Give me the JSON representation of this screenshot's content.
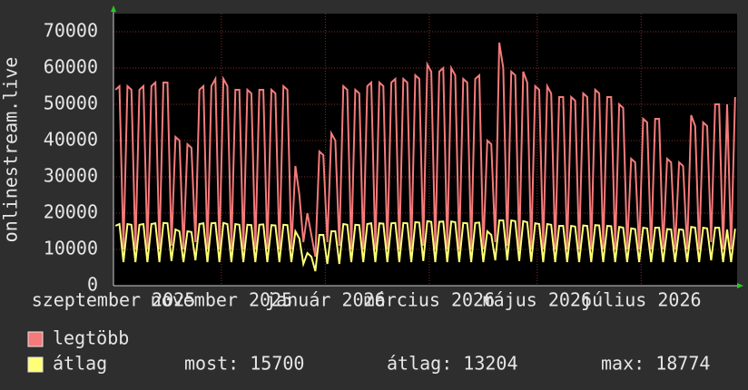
{
  "chart_data": {
    "type": "line",
    "ylabel": "onlinestream.live",
    "xlim": [
      0,
      156
    ],
    "ylim": [
      0,
      75000
    ],
    "yticks": [
      0,
      10000,
      20000,
      30000,
      40000,
      50000,
      60000,
      70000
    ],
    "xticks": [
      {
        "value": 0,
        "label": "szeptember 2025"
      },
      {
        "value": 27,
        "label": "november 2025"
      },
      {
        "value": 53,
        "label": "január 2026"
      },
      {
        "value": 79,
        "label": "március 2026"
      },
      {
        "value": 106,
        "label": "május 2026"
      },
      {
        "value": 132,
        "label": "július 2026"
      }
    ],
    "grid": true,
    "series": [
      {
        "name": "legtöbb",
        "color": "#f57a7a",
        "values": [
          54000,
          55000,
          10000,
          55000,
          54000,
          10000,
          54000,
          55000,
          10000,
          55000,
          56000,
          10000,
          56000,
          56000,
          11000,
          41000,
          40000,
          10000,
          39000,
          38000,
          12000,
          54000,
          55000,
          10000,
          55000,
          57000,
          10000,
          57000,
          55000,
          10000,
          54000,
          54000,
          10000,
          54000,
          53000,
          10000,
          54000,
          54000,
          10000,
          54000,
          53000,
          10000,
          55000,
          54000,
          10000,
          33000,
          25000,
          12000,
          20000,
          14000,
          8000,
          37000,
          36000,
          12000,
          42000,
          40000,
          11000,
          55000,
          54000,
          10000,
          54000,
          53000,
          10000,
          55000,
          56000,
          10000,
          56000,
          55000,
          10000,
          56000,
          57000,
          10000,
          57000,
          56000,
          10000,
          58000,
          57000,
          11000,
          61000,
          59000,
          10000,
          59000,
          60000,
          10000,
          60000,
          58000,
          10000,
          57000,
          56000,
          10000,
          57000,
          58000,
          10000,
          40000,
          39000,
          12000,
          67000,
          60000,
          11000,
          59000,
          58000,
          10000,
          59000,
          56000,
          10000,
          55000,
          54000,
          10000,
          55000,
          53000,
          10000,
          52000,
          52000,
          10000,
          52000,
          51000,
          10000,
          53000,
          52000,
          10000,
          54000,
          53000,
          10000,
          52000,
          52000,
          10000,
          50000,
          49000,
          10000,
          35000,
          34000,
          10000,
          46000,
          45000,
          10000,
          46000,
          46000,
          10000,
          35000,
          34000,
          10000,
          34000,
          33000,
          10000,
          47000,
          44000,
          10000,
          45000,
          44000,
          12000,
          50000,
          50000,
          10000,
          50000,
          10000,
          52000
        ]
      },
      {
        "name": "átlag",
        "color": "#ffff77",
        "values": [
          16500,
          17000,
          6500,
          17000,
          16800,
          6500,
          16800,
          17000,
          6500,
          17000,
          17200,
          6500,
          17300,
          17200,
          6800,
          15500,
          15000,
          6500,
          15000,
          14800,
          7000,
          17000,
          17200,
          6500,
          17200,
          17300,
          6500,
          17300,
          17000,
          6500,
          17000,
          16800,
          6500,
          16800,
          16700,
          6500,
          16800,
          16900,
          6500,
          16700,
          16600,
          6500,
          16800,
          16700,
          6500,
          15000,
          13000,
          6000,
          9000,
          8000,
          4000,
          14000,
          14000,
          6000,
          15000,
          15000,
          6000,
          17000,
          16800,
          6500,
          16800,
          16700,
          6500,
          17000,
          17200,
          6500,
          17200,
          17100,
          6500,
          17200,
          17300,
          6500,
          17300,
          17200,
          6500,
          17500,
          17400,
          6800,
          17800,
          17600,
          6500,
          17600,
          17700,
          6500,
          17700,
          17500,
          6500,
          17300,
          17200,
          6500,
          17300,
          17400,
          6500,
          15000,
          14000,
          7000,
          18000,
          18000,
          7000,
          18000,
          17800,
          6800,
          17800,
          17500,
          6600,
          17200,
          17000,
          6500,
          17000,
          16800,
          6500,
          16500,
          16500,
          6500,
          16500,
          16300,
          6500,
          16600,
          16500,
          6500,
          16700,
          16600,
          6500,
          16500,
          16400,
          6500,
          16200,
          16000,
          6500,
          15800,
          15600,
          6500,
          16000,
          15800,
          6500,
          16000,
          16000,
          6500,
          15600,
          15500,
          6500,
          15500,
          15400,
          6500,
          16200,
          16000,
          6500,
          16000,
          15800,
          7000,
          16000,
          16000,
          6500,
          15500,
          6500,
          15700
        ]
      }
    ],
    "legend_stats": [
      "most: 15700",
      "átlag: 13204",
      "max: 18774"
    ]
  }
}
